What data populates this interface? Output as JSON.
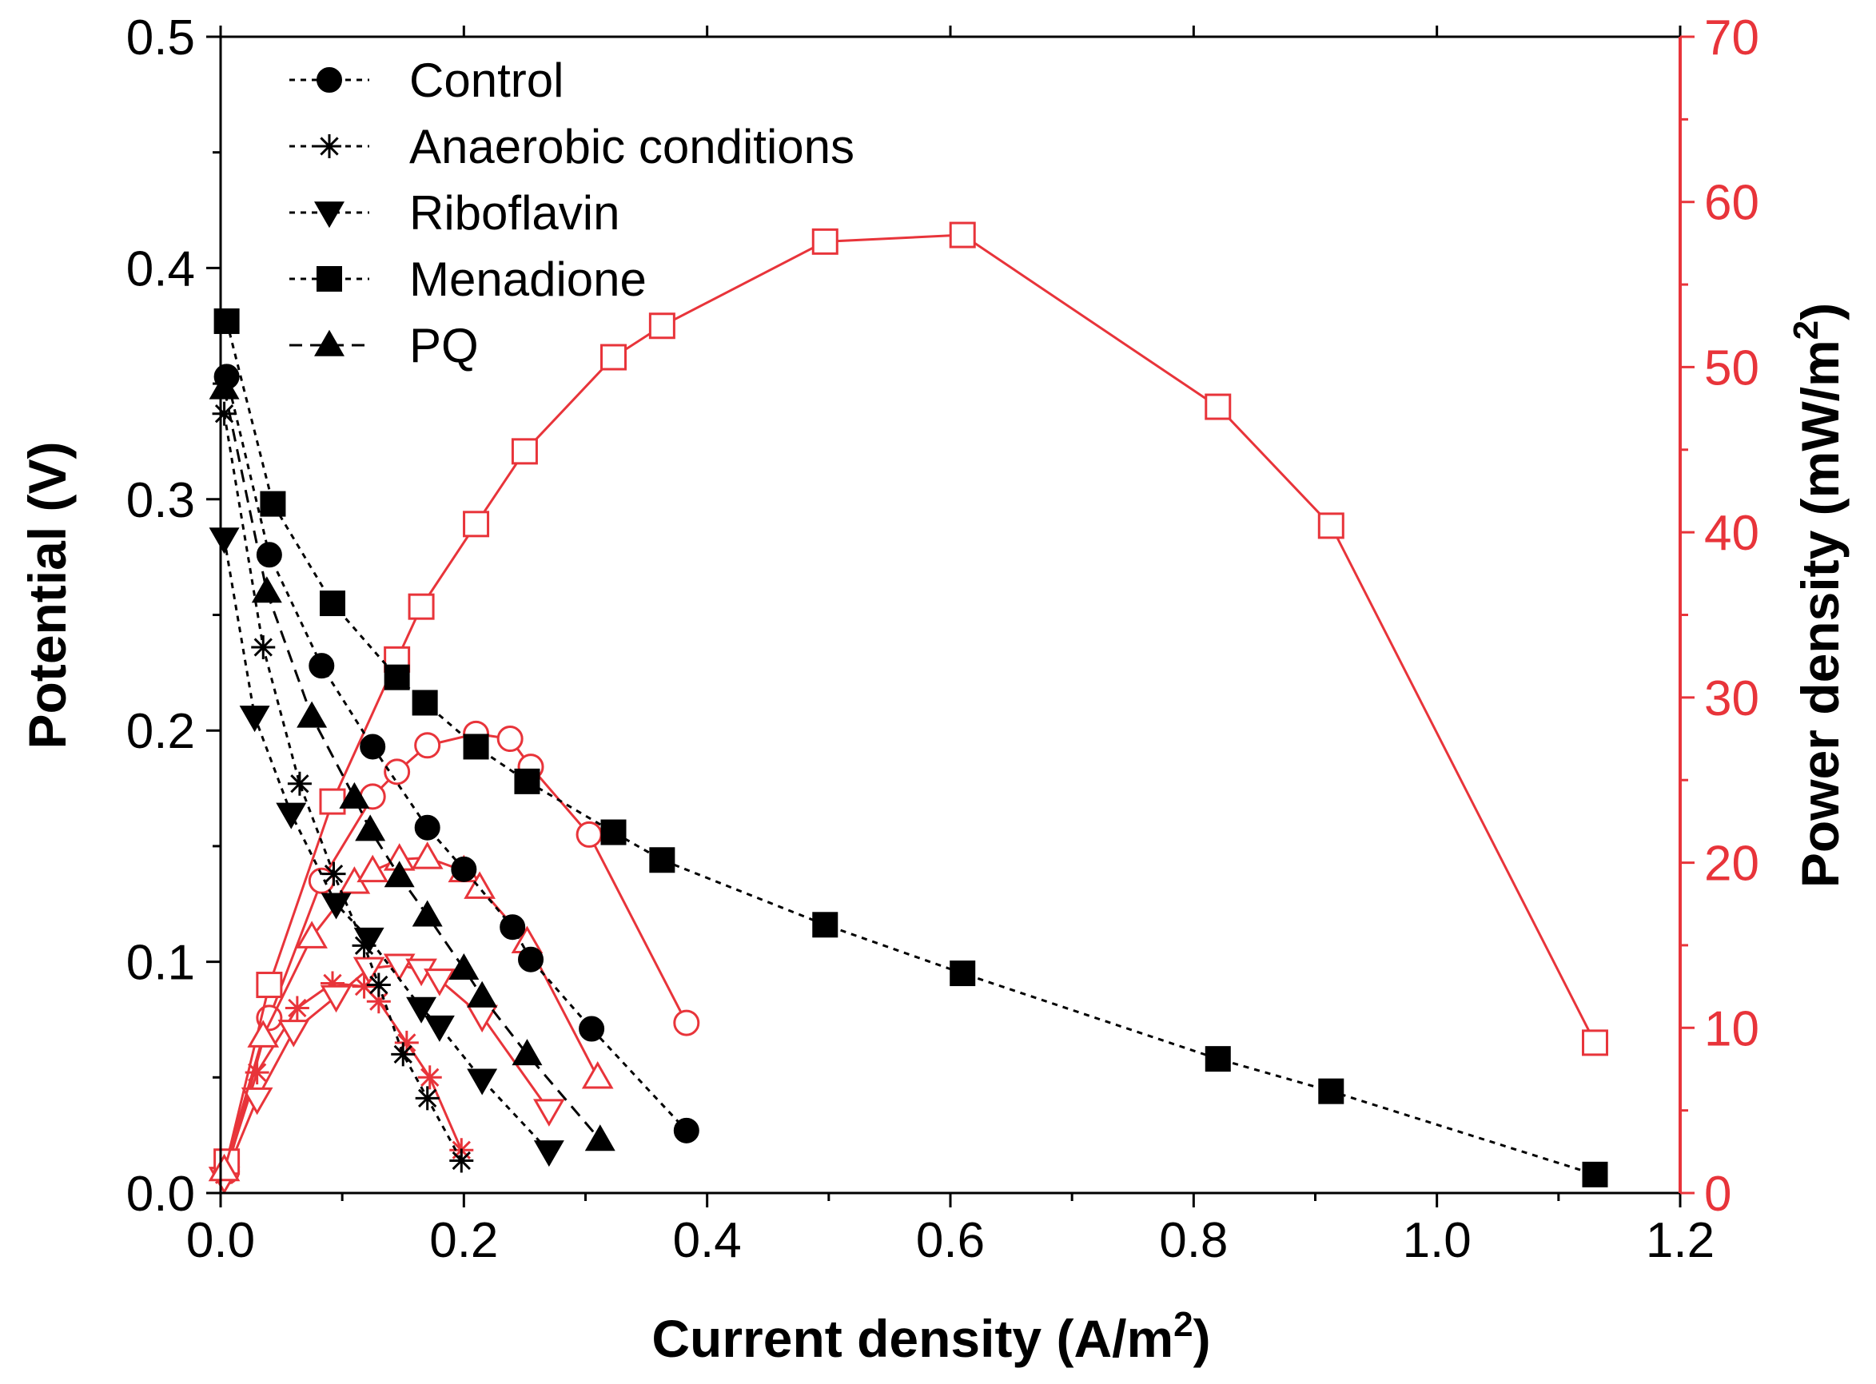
{
  "chart_data": {
    "type": "line",
    "axes": {
      "x": {
        "label": "Current density (A/m",
        "label_sup": "2",
        "label_end": ")",
        "range": [
          0,
          1.2
        ],
        "ticks": [
          0.0,
          0.2,
          0.4,
          0.6,
          0.8,
          1.0,
          1.2
        ],
        "tick_labels": [
          "0.0",
          "0.2",
          "0.4",
          "0.6",
          "0.8",
          "1.0",
          "1.2"
        ]
      },
      "y_left": {
        "label": "Potential (V)",
        "range": [
          0,
          0.5
        ],
        "ticks": [
          0.0,
          0.1,
          0.2,
          0.3,
          0.4,
          0.5
        ],
        "tick_labels": [
          "0.0",
          "0.1",
          "0.2",
          "0.3",
          "0.4",
          "0.5"
        ],
        "color": "#000000"
      },
      "y_right": {
        "label": "Power density (mW/m",
        "label_sup": "2",
        "label_end": ")",
        "range": [
          0,
          70
        ],
        "ticks": [
          0,
          10,
          20,
          30,
          40,
          50,
          60,
          70
        ],
        "tick_labels": [
          "0",
          "10",
          "20",
          "30",
          "40",
          "50",
          "60",
          "70"
        ],
        "color": "#e8343a"
      }
    },
    "legend": {
      "placement": "top-left",
      "entries": [
        {
          "label": "Control",
          "marker": "circle",
          "dash": "dotted"
        },
        {
          "label": "Anaerobic conditions",
          "marker": "asterisk",
          "dash": "dotted"
        },
        {
          "label": "Riboflavin",
          "marker": "triangle-down",
          "dash": "dotted"
        },
        {
          "label": "Menadione",
          "marker": "square",
          "dash": "dotted"
        },
        {
          "label": "PQ",
          "marker": "triangle-up",
          "dash": "dashed"
        }
      ]
    },
    "polarization_series": [
      {
        "name": "Control",
        "marker": "circle",
        "dash": "dotted",
        "x": [
          0.005,
          0.04,
          0.083,
          0.125,
          0.17,
          0.2,
          0.24,
          0.255,
          0.305,
          0.383
        ],
        "y": [
          0.353,
          0.276,
          0.228,
          0.193,
          0.158,
          0.14,
          0.115,
          0.101,
          0.071,
          0.027
        ]
      },
      {
        "name": "Anaerobic conditions",
        "marker": "asterisk",
        "dash": "dotted",
        "x": [
          0.003,
          0.035,
          0.065,
          0.093,
          0.118,
          0.13,
          0.15,
          0.17,
          0.198
        ],
        "y": [
          0.337,
          0.236,
          0.177,
          0.138,
          0.107,
          0.09,
          0.06,
          0.041,
          0.014
        ]
      },
      {
        "name": "Riboflavin",
        "marker": "triangle-down",
        "dash": "dotted",
        "x": [
          0.003,
          0.028,
          0.058,
          0.095,
          0.122,
          0.165,
          0.18,
          0.215,
          0.27
        ],
        "y": [
          0.283,
          0.206,
          0.164,
          0.125,
          0.11,
          0.08,
          0.072,
          0.049,
          0.018
        ]
      },
      {
        "name": "Menadione",
        "marker": "square",
        "dash": "dotted",
        "x": [
          0.005,
          0.043,
          0.092,
          0.145,
          0.168,
          0.21,
          0.252,
          0.323,
          0.363,
          0.497,
          0.61,
          0.82,
          0.913,
          1.13
        ],
        "y": [
          0.377,
          0.298,
          0.255,
          0.223,
          0.212,
          0.193,
          0.178,
          0.156,
          0.144,
          0.116,
          0.095,
          0.058,
          0.044,
          0.008
        ]
      },
      {
        "name": "PQ",
        "marker": "triangle-up",
        "dash": "dashed",
        "x": [
          0.003,
          0.038,
          0.075,
          0.11,
          0.123,
          0.147,
          0.17,
          0.2,
          0.215,
          0.252,
          0.312
        ],
        "y": [
          0.348,
          0.26,
          0.206,
          0.171,
          0.157,
          0.137,
          0.12,
          0.097,
          0.085,
          0.06,
          0.023
        ]
      }
    ],
    "power_series": [
      {
        "name": "Control",
        "marker": "circle",
        "x": [
          0.005,
          0.04,
          0.083,
          0.125,
          0.145,
          0.17,
          0.21,
          0.238,
          0.255,
          0.303,
          0.383
        ],
        "y": [
          1.3,
          10.6,
          18.9,
          24.0,
          25.5,
          27.1,
          27.8,
          27.5,
          25.8,
          21.7,
          10.3
        ]
      },
      {
        "name": "Anaerobic conditions",
        "marker": "asterisk",
        "x": [
          0.003,
          0.03,
          0.063,
          0.092,
          0.118,
          0.13,
          0.153,
          0.172,
          0.198
        ],
        "y": [
          1.1,
          7.3,
          11.2,
          12.7,
          12.5,
          11.6,
          9.1,
          7.0,
          2.6
        ]
      },
      {
        "name": "Riboflavin",
        "marker": "triangle-down",
        "x": [
          0.003,
          0.03,
          0.06,
          0.095,
          0.122,
          0.147,
          0.165,
          0.18,
          0.215,
          0.27
        ],
        "y": [
          0.9,
          5.7,
          9.8,
          11.9,
          13.6,
          13.8,
          13.5,
          12.9,
          10.7,
          5.0
        ]
      },
      {
        "name": "Menadione",
        "marker": "square",
        "x": [
          0.005,
          0.04,
          0.092,
          0.145,
          0.165,
          0.21,
          0.25,
          0.323,
          0.363,
          0.497,
          0.61,
          0.82,
          0.913,
          1.13
        ],
        "y": [
          1.9,
          12.6,
          23.7,
          32.3,
          35.5,
          40.5,
          44.9,
          50.6,
          52.5,
          57.6,
          58.0,
          47.6,
          40.4,
          9.1
        ]
      },
      {
        "name": "PQ",
        "marker": "triangle-up",
        "x": [
          0.003,
          0.035,
          0.075,
          0.11,
          0.125,
          0.147,
          0.17,
          0.2,
          0.213,
          0.252,
          0.31
        ],
        "y": [
          1.4,
          9.5,
          15.5,
          18.8,
          19.5,
          20.2,
          20.3,
          19.5,
          18.5,
          15.2,
          7.0
        ]
      }
    ],
    "colors": {
      "potential": "#000000",
      "power": "#e8343a"
    }
  }
}
